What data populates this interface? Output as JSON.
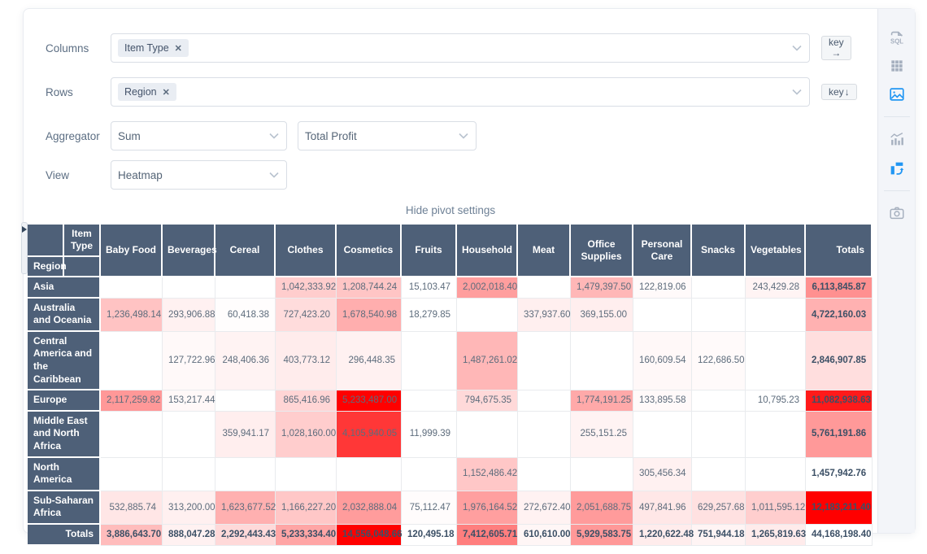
{
  "controls": {
    "columns": {
      "label": "Columns",
      "tags": [
        "Item Type"
      ],
      "remove_glyph": "✕",
      "key_button": "key",
      "key_arrow": "→"
    },
    "rows": {
      "label": "Rows",
      "tags": [
        "Region"
      ],
      "remove_glyph": "✕",
      "key_button": "key",
      "key_arrow": "↓"
    },
    "aggregator": {
      "label": "Aggregator",
      "value": "Sum",
      "field_value": "Total Profit"
    },
    "view": {
      "label": "View",
      "value": "Heatmap"
    },
    "hide_settings_label": "Hide pivot settings"
  },
  "toolbar": {
    "sql_label": "SQL",
    "active_color": "#2196f3",
    "inactive_color": "#a6b0bf"
  },
  "pivot": {
    "col_axis_label": "Item Type",
    "row_axis_label": "Region",
    "totals_label": "Totals",
    "columns": [
      "Baby Food",
      "Beverages",
      "Cereal",
      "Clothes",
      "Cosmetics",
      "Fruits",
      "Household",
      "Meat",
      "Office Supplies",
      "Personal Care",
      "Snacks",
      "Vegetables"
    ],
    "rows": [
      {
        "label": "Asia",
        "values": [
          null,
          null,
          null,
          1042333.92,
          1208744.24,
          15103.47,
          2002018.4,
          null,
          1479397.5,
          122819.06,
          null,
          243429.28
        ],
        "total": 6113845.87
      },
      {
        "label": "Australia and Oceania",
        "values": [
          1236498.14,
          293906.88,
          60418.38,
          727423.2,
          1678540.98,
          18279.85,
          null,
          337937.6,
          369155.0,
          null,
          null,
          null
        ],
        "total": 4722160.03
      },
      {
        "label": "Central America and the Caribbean",
        "values": [
          null,
          127722.96,
          248406.36,
          403773.12,
          296448.35,
          null,
          1487261.02,
          null,
          null,
          160609.54,
          122686.5,
          null
        ],
        "total": 2846907.85
      },
      {
        "label": "Europe",
        "values": [
          2117259.82,
          153217.44,
          null,
          865416.96,
          5233487.0,
          null,
          794675.35,
          null,
          1774191.25,
          133895.58,
          null,
          10795.23
        ],
        "total": 11082938.63
      },
      {
        "label": "Middle East and North Africa",
        "values": [
          null,
          null,
          359941.17,
          1028160.0,
          4105940.05,
          11999.39,
          null,
          null,
          255151.25,
          null,
          null,
          null
        ],
        "total": 5761191.86
      },
      {
        "label": "North America",
        "values": [
          null,
          null,
          null,
          null,
          null,
          null,
          1152486.42,
          null,
          null,
          305456.34,
          null,
          null
        ],
        "total": 1457942.76
      },
      {
        "label": "Sub-Saharan Africa",
        "values": [
          532885.74,
          313200.0,
          1623677.52,
          1166227.2,
          2032888.04,
          75112.47,
          1976164.52,
          272672.4,
          2051688.75,
          497841.96,
          629257.68,
          1011595.12
        ],
        "total": 12183211.4
      }
    ],
    "col_totals": [
      3886643.7,
      888047.28,
      2292443.43,
      5233334.4,
      14556048.66,
      120495.18,
      7412605.71,
      610610.0,
      5929583.75,
      1220622.48,
      751944.18,
      1265819.63
    ],
    "grand_total": 44168198.4
  },
  "colors": {
    "header_bg": "#4e6078",
    "heatmap_max": "#ff0000",
    "accent_blue": "#2196f3"
  }
}
